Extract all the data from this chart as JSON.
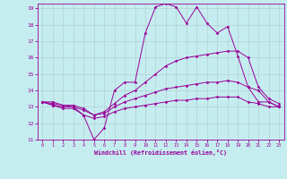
{
  "xlabel": "Windchill (Refroidissement éolien,°C)",
  "background_color": "#c5edf0",
  "line_color": "#990099",
  "grid_color": "#b0c8cc",
  "xlim": [
    -0.5,
    23.5
  ],
  "ylim": [
    11,
    19.3
  ],
  "yticks": [
    11,
    12,
    13,
    14,
    15,
    16,
    17,
    18,
    19
  ],
  "xticks": [
    0,
    1,
    2,
    3,
    4,
    5,
    6,
    7,
    8,
    9,
    10,
    11,
    12,
    13,
    14,
    15,
    16,
    17,
    18,
    19,
    20,
    21,
    22,
    23
  ],
  "lines": [
    {
      "x": [
        0,
        1,
        2,
        3,
        4,
        5,
        6,
        7,
        8,
        9,
        10,
        11,
        12,
        13,
        14,
        15,
        16,
        17,
        18,
        19,
        20,
        21,
        22,
        23
      ],
      "y": [
        13.3,
        13.3,
        13.1,
        13.0,
        12.5,
        11.0,
        11.7,
        14.0,
        14.5,
        14.5,
        17.5,
        19.1,
        19.3,
        19.1,
        18.1,
        19.1,
        18.1,
        17.5,
        17.9,
        16.1,
        14.2,
        13.3,
        13.3,
        13.0
      ]
    },
    {
      "x": [
        0,
        1,
        2,
        3,
        4,
        5,
        6,
        7,
        8,
        9,
        10,
        11,
        12,
        13,
        14,
        15,
        16,
        17,
        18,
        19,
        20,
        21,
        22,
        23
      ],
      "y": [
        13.3,
        13.2,
        13.1,
        13.1,
        12.9,
        12.5,
        12.7,
        13.2,
        13.7,
        14.0,
        14.5,
        15.0,
        15.5,
        15.8,
        16.0,
        16.1,
        16.2,
        16.3,
        16.4,
        16.4,
        16.0,
        14.2,
        13.5,
        13.2
      ]
    },
    {
      "x": [
        0,
        1,
        2,
        3,
        4,
        5,
        6,
        7,
        8,
        9,
        10,
        11,
        12,
        13,
        14,
        15,
        16,
        17,
        18,
        19,
        20,
        21,
        22,
        23
      ],
      "y": [
        13.3,
        13.1,
        13.0,
        13.0,
        12.8,
        12.5,
        12.6,
        13.0,
        13.3,
        13.5,
        13.7,
        13.9,
        14.1,
        14.2,
        14.3,
        14.4,
        14.5,
        14.5,
        14.6,
        14.5,
        14.2,
        14.0,
        13.3,
        13.0
      ]
    },
    {
      "x": [
        0,
        1,
        2,
        3,
        4,
        5,
        6,
        7,
        8,
        9,
        10,
        11,
        12,
        13,
        14,
        15,
        16,
        17,
        18,
        19,
        20,
        21,
        22,
        23
      ],
      "y": [
        13.3,
        13.1,
        12.9,
        12.9,
        12.5,
        12.3,
        12.4,
        12.7,
        12.9,
        13.0,
        13.1,
        13.2,
        13.3,
        13.4,
        13.4,
        13.5,
        13.5,
        13.6,
        13.6,
        13.6,
        13.3,
        13.2,
        13.0,
        13.0
      ]
    }
  ]
}
